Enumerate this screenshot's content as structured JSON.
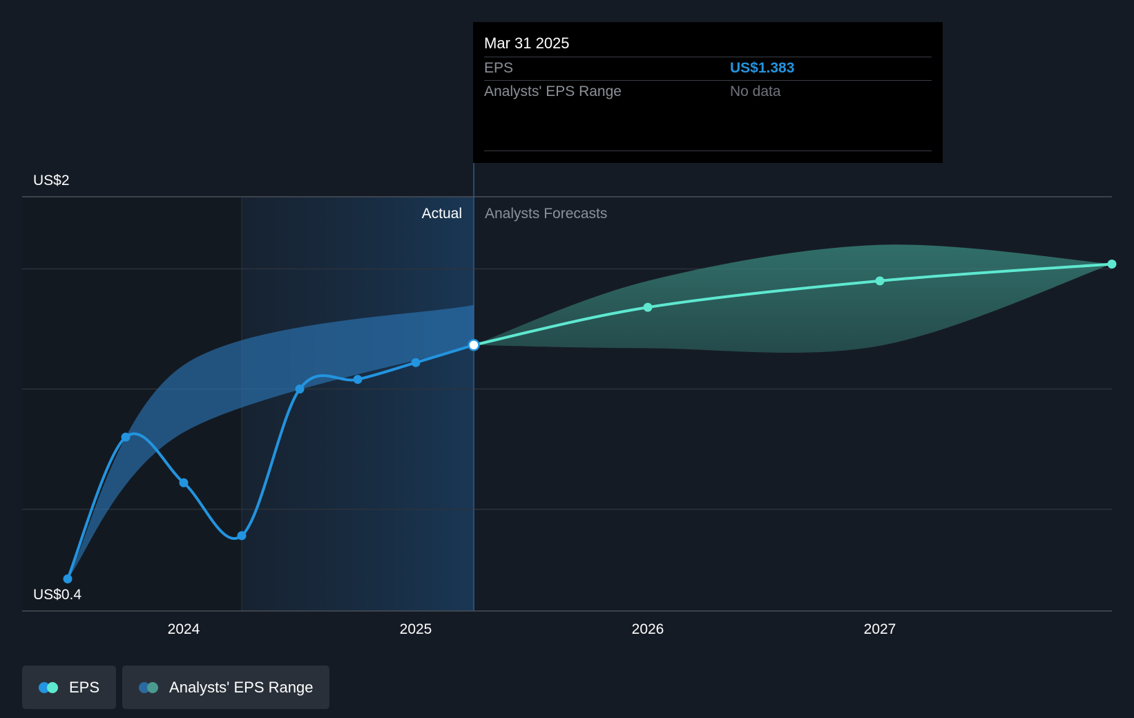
{
  "chart_data": {
    "type": "line",
    "y_axis": {
      "labels": [
        "US$2",
        "US$0.4"
      ],
      "ylim": [
        0.4,
        2.0
      ]
    },
    "x_axis": {
      "ticks": [
        "2024",
        "2025",
        "2026",
        "2027"
      ],
      "tick_values": [
        2024.0,
        2025.0,
        2026.0,
        2027.0
      ]
    },
    "section_labels": {
      "actual": "Actual",
      "forecast": "Analysts Forecasts"
    },
    "series": [
      {
        "name": "EPS",
        "kind": "actual",
        "color": "#2394df",
        "x": [
          2023.5,
          2023.75,
          2024.0,
          2024.25,
          2024.5,
          2024.75,
          2025.0,
          2025.25
        ],
        "y": [
          0.41,
          1.0,
          0.81,
          0.59,
          1.2,
          1.24,
          1.31,
          1.383
        ]
      },
      {
        "name": "EPS",
        "kind": "forecast",
        "color": "#5ee8d0",
        "x": [
          2025.25,
          2026.0,
          2027.0,
          2028.0
        ],
        "y": [
          1.383,
          1.54,
          1.65,
          1.72
        ]
      }
    ],
    "ranges": [
      {
        "name": "Analysts' EPS Range",
        "kind": "actual",
        "color": "#2394df",
        "x": [
          2023.5,
          2024.0,
          2025.25
        ],
        "high": [
          0.41,
          1.3,
          1.55
        ],
        "low": [
          0.41,
          1.02,
          1.38
        ]
      },
      {
        "name": "Analysts' EPS Range",
        "kind": "forecast",
        "color": "#5ee8d0",
        "x": [
          2025.25,
          2026.0,
          2027.0,
          2028.0
        ],
        "high": [
          1.383,
          1.65,
          1.8,
          1.72
        ],
        "low": [
          1.383,
          1.37,
          1.38,
          1.72
        ]
      }
    ],
    "highlight_x": 2025.25,
    "legend": [
      {
        "label": "EPS",
        "colors": [
          "#2394df",
          "#5ee8d0"
        ]
      },
      {
        "label": "Analysts' EPS Range",
        "colors": [
          "#2a6aa0",
          "#4a9a90"
        ]
      }
    ]
  },
  "tooltip": {
    "date": "Mar 31 2025",
    "rows": [
      {
        "label": "EPS",
        "value": "US$1.383",
        "value_color": "#2394df"
      },
      {
        "label": "Analysts' EPS Range",
        "value": "No data",
        "value_color": "#6f747c"
      }
    ]
  }
}
